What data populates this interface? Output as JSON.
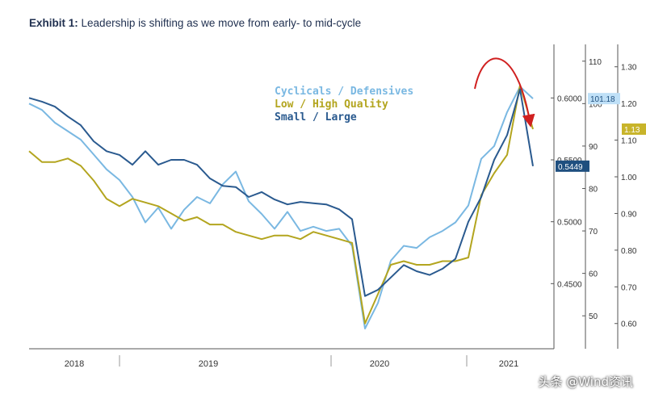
{
  "header": {
    "exhibit": "Exhibit 1:",
    "title": "Leadership is shifting as we move from early- to mid-cycle"
  },
  "watermark": "头条 @Wind资讯",
  "chart_data": {
    "type": "line",
    "title": "Leadership is shifting as we move from early- to mid-cycle",
    "x_labels": [
      "2018",
      "2019",
      "2020",
      "2021"
    ],
    "x_range": [
      "2018-01",
      "2021-04"
    ],
    "axes": {
      "left": {
        "ticks": [
          "0.4500",
          "0.5000",
          "0.5500",
          "0.6000"
        ],
        "range": [
          0.4,
          0.64
        ]
      },
      "mid": {
        "ticks": [
          "50",
          "60",
          "70",
          "80",
          "90",
          "100",
          "110"
        ],
        "range": [
          43,
          113
        ]
      },
      "right": {
        "ticks": [
          "0.60",
          "0.70",
          "0.80",
          "0.90",
          "1.00",
          "1.10",
          "1.20",
          "1.30"
        ],
        "range": [
          0.54,
          1.35
        ]
      }
    },
    "series": [
      {
        "name": "Cyclicals / Defensives",
        "axis": "mid",
        "color": "#7ab8e2",
        "last_label": "101.18",
        "x": [
          "2018-01",
          "2018-02",
          "2018-03",
          "2018-04",
          "2018-05",
          "2018-06",
          "2018-07",
          "2018-08",
          "2018-09",
          "2018-10",
          "2018-11",
          "2018-12",
          "2019-01",
          "2019-02",
          "2019-03",
          "2019-04",
          "2019-05",
          "2019-06",
          "2019-07",
          "2019-08",
          "2019-09",
          "2019-10",
          "2019-11",
          "2019-12",
          "2020-01",
          "2020-02",
          "2020-03",
          "2020-04",
          "2020-05",
          "2020-06",
          "2020-07",
          "2020-08",
          "2020-09",
          "2020-10",
          "2020-11",
          "2020-12",
          "2021-01",
          "2021-02",
          "2021-03",
          "2021-04"
        ],
        "values": [
          100,
          98.5,
          95.5,
          93.5,
          91.5,
          88,
          84.5,
          82,
          78,
          72,
          75.5,
          70.5,
          75,
          78,
          76.5,
          81,
          84,
          77,
          74,
          70.5,
          74.5,
          70,
          71,
          70,
          70.5,
          66.5,
          47,
          53,
          63,
          66.5,
          66,
          68.5,
          70,
          72,
          76,
          87,
          90,
          98,
          104,
          101.18
        ]
      },
      {
        "name": "Low / High Quality",
        "axis": "right",
        "color": "#b3a51f",
        "last_label": "1.13",
        "x": [
          "2018-01",
          "2018-02",
          "2018-03",
          "2018-04",
          "2018-05",
          "2018-06",
          "2018-07",
          "2018-08",
          "2018-09",
          "2018-10",
          "2018-11",
          "2018-12",
          "2019-01",
          "2019-02",
          "2019-03",
          "2019-04",
          "2019-05",
          "2019-06",
          "2019-07",
          "2019-08",
          "2019-09",
          "2019-10",
          "2019-11",
          "2019-12",
          "2020-01",
          "2020-02",
          "2020-03",
          "2020-04",
          "2020-05",
          "2020-06",
          "2020-07",
          "2020-08",
          "2020-09",
          "2020-10",
          "2020-11",
          "2020-12",
          "2021-01",
          "2021-02",
          "2021-03",
          "2021-04"
        ],
        "values": [
          1.07,
          1.04,
          1.04,
          1.05,
          1.03,
          0.99,
          0.94,
          0.92,
          0.94,
          0.93,
          0.92,
          0.9,
          0.88,
          0.89,
          0.87,
          0.87,
          0.85,
          0.84,
          0.83,
          0.84,
          0.84,
          0.83,
          0.85,
          0.84,
          0.83,
          0.82,
          0.6,
          0.68,
          0.76,
          0.77,
          0.76,
          0.76,
          0.77,
          0.77,
          0.78,
          0.95,
          1.01,
          1.06,
          1.25,
          1.13
        ]
      },
      {
        "name": "Small / Large",
        "axis": "left",
        "color": "#2a5a8f",
        "last_label": "0.5449",
        "x": [
          "2018-01",
          "2018-02",
          "2018-03",
          "2018-04",
          "2018-05",
          "2018-06",
          "2018-07",
          "2018-08",
          "2018-09",
          "2018-10",
          "2018-11",
          "2018-12",
          "2019-01",
          "2019-02",
          "2019-03",
          "2019-04",
          "2019-05",
          "2019-06",
          "2019-07",
          "2019-08",
          "2019-09",
          "2019-10",
          "2019-11",
          "2019-12",
          "2020-01",
          "2020-02",
          "2020-03",
          "2020-04",
          "2020-05",
          "2020-06",
          "2020-07",
          "2020-08",
          "2020-09",
          "2020-10",
          "2020-11",
          "2020-12",
          "2021-01",
          "2021-02",
          "2021-03",
          "2021-04"
        ],
        "values": [
          0.6,
          0.597,
          0.593,
          0.585,
          0.578,
          0.565,
          0.557,
          0.554,
          0.546,
          0.557,
          0.546,
          0.55,
          0.55,
          0.546,
          0.535,
          0.529,
          0.528,
          0.52,
          0.524,
          0.518,
          0.514,
          0.516,
          0.515,
          0.514,
          0.51,
          0.502,
          0.44,
          0.445,
          0.455,
          0.465,
          0.46,
          0.457,
          0.462,
          0.47,
          0.5,
          0.52,
          0.55,
          0.57,
          0.607,
          0.5449
        ]
      }
    ],
    "legend_placement": "top-center",
    "annotation": "red curved arrow showing a peak and turn-down at the end of the series",
    "grid": false
  }
}
